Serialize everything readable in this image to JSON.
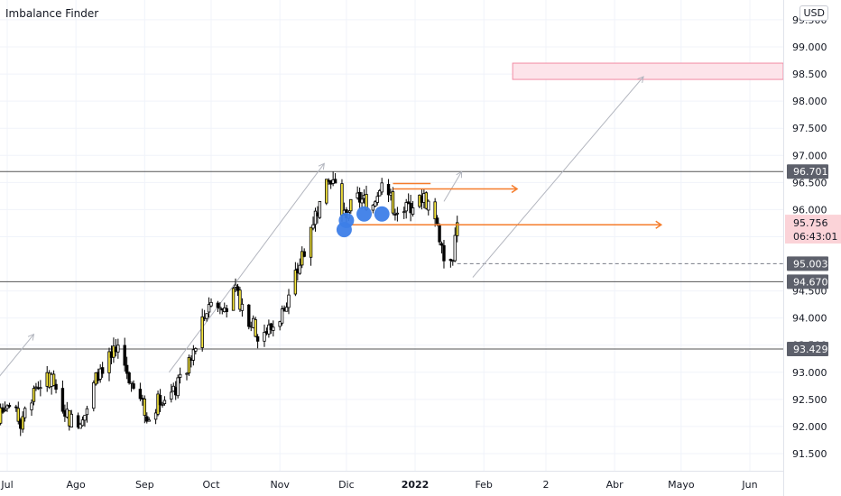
{
  "indicator": {
    "title": "Imbalance Finder"
  },
  "currency": "USD",
  "colors": {
    "candle": "#000000",
    "imbalance_candle": "#f5e53d",
    "level_line": "#555555",
    "arrow_orange": "#f57c2b",
    "trend_line": "#b2b5be",
    "zone_fill": "#fde4ea",
    "zone_stroke": "#f28ba4",
    "marker_blue": "#3d7ee8",
    "current_price_bg": "#fbd3d8",
    "level_label_bg": "#5d606b"
  },
  "chart_data": {
    "type": "candlestick",
    "y_axis": {
      "ylim": [
        91.1,
        100.0
      ],
      "tick_labels": [
        "99.500",
        "99.000",
        "98.500",
        "98.000",
        "97.500",
        "97.000",
        "96.500",
        "96.000",
        "95.500",
        "94.500",
        "94.000",
        "93.500",
        "93.000",
        "92.500",
        "92.000",
        "91.500"
      ]
    },
    "x_axis": {
      "labels": [
        {
          "label": "Jul",
          "date": "2021-07-01"
        },
        {
          "label": "Ago",
          "date": "2021-08-01"
        },
        {
          "label": "Sep",
          "date": "2021-09-01"
        },
        {
          "label": "Oct",
          "date": "2021-10-01"
        },
        {
          "label": "Nov",
          "date": "2021-11-01"
        },
        {
          "label": "Dic",
          "date": "2021-12-01"
        },
        {
          "label": "2022",
          "date": "2022-01-01"
        },
        {
          "label": "Feb",
          "date": "2022-02-01"
        },
        {
          "label": "2",
          "date": "2022-03-01"
        },
        {
          "label": "Abr",
          "date": "2022-04-01"
        },
        {
          "label": "Mayo",
          "date": "2022-05-01"
        },
        {
          "label": "Jun",
          "date": "2022-06-01"
        }
      ]
    },
    "price_anchors": [
      [
        "2021-06-23",
        91.9
      ],
      [
        "2021-06-30",
        92.45
      ],
      [
        "2021-07-07",
        92.1
      ],
      [
        "2021-07-14",
        92.75
      ],
      [
        "2021-07-21",
        92.9
      ],
      [
        "2021-07-28",
        92.2
      ],
      [
        "2021-08-03",
        91.95
      ],
      [
        "2021-08-11",
        93.0
      ],
      [
        "2021-08-20",
        93.45
      ],
      [
        "2021-08-27",
        92.7
      ],
      [
        "2021-09-03",
        92.15
      ],
      [
        "2021-09-08",
        92.55
      ],
      [
        "2021-09-14",
        92.6
      ],
      [
        "2021-09-22",
        93.2
      ],
      [
        "2021-09-30",
        94.3
      ],
      [
        "2021-10-06",
        94.15
      ],
      [
        "2021-10-12",
        94.45
      ],
      [
        "2021-10-22",
        93.7
      ],
      [
        "2021-10-28",
        93.8
      ],
      [
        "2021-11-04",
        94.2
      ],
      [
        "2021-11-10",
        95.0
      ],
      [
        "2021-11-16",
        95.8
      ],
      [
        "2021-11-24",
        96.6
      ],
      [
        "2021-11-30",
        95.9
      ],
      [
        "2021-12-06",
        96.2
      ],
      [
        "2021-12-13",
        96.1
      ],
      [
        "2021-12-17",
        96.6
      ],
      [
        "2021-12-22",
        96.05
      ],
      [
        "2021-12-28",
        96.0
      ],
      [
        "2022-01-04",
        96.25
      ],
      [
        "2022-01-10",
        95.95
      ],
      [
        "2022-01-14",
        95.1
      ],
      [
        "2022-01-18",
        95.2
      ],
      [
        "2022-01-20",
        95.756
      ]
    ],
    "last_price": 95.756,
    "countdown": "06:43:01",
    "horizontal_levels": [
      {
        "label": "96.701",
        "value": 96.701
      },
      {
        "label": "94.670",
        "value": 94.67
      },
      {
        "label": "93.429",
        "value": 93.429
      }
    ],
    "dashed_level": {
      "label": "95.003",
      "value": 95.003,
      "from": "2022-01-20",
      "to": "2022-07-20"
    },
    "target_zone": {
      "from": "2022-02-14",
      "to": "2022-07-20",
      "low": 98.4,
      "high": 98.7
    },
    "orange_arrows": [
      {
        "from": "2021-12-22",
        "to": "2022-02-16",
        "value": 96.38
      },
      {
        "from": "2021-12-01",
        "to": "2022-04-22",
        "value": 95.72
      }
    ],
    "orange_stubs": [
      {
        "from": "2021-12-22",
        "to": "2022-01-08",
        "value": 96.48
      }
    ],
    "trend_arrows": [
      {
        "from": [
          "2021-06-25",
          92.8
        ],
        "to": [
          "2021-07-13",
          93.7
        ]
      },
      {
        "from": [
          "2021-09-12",
          93.0
        ],
        "to": [
          "2021-11-21",
          96.85
        ]
      },
      {
        "from": [
          "2022-01-14",
          96.15
        ],
        "to": [
          "2022-01-22",
          96.7
        ]
      },
      {
        "from": [
          "2022-01-27",
          94.75
        ],
        "to": [
          "2022-04-14",
          98.45
        ]
      }
    ],
    "markers": [
      {
        "date": "2021-11-30",
        "value": 95.63
      },
      {
        "date": "2021-12-01",
        "value": 95.8
      },
      {
        "date": "2021-12-09",
        "value": 95.92
      },
      {
        "date": "2021-12-17",
        "value": 95.92
      }
    ]
  }
}
